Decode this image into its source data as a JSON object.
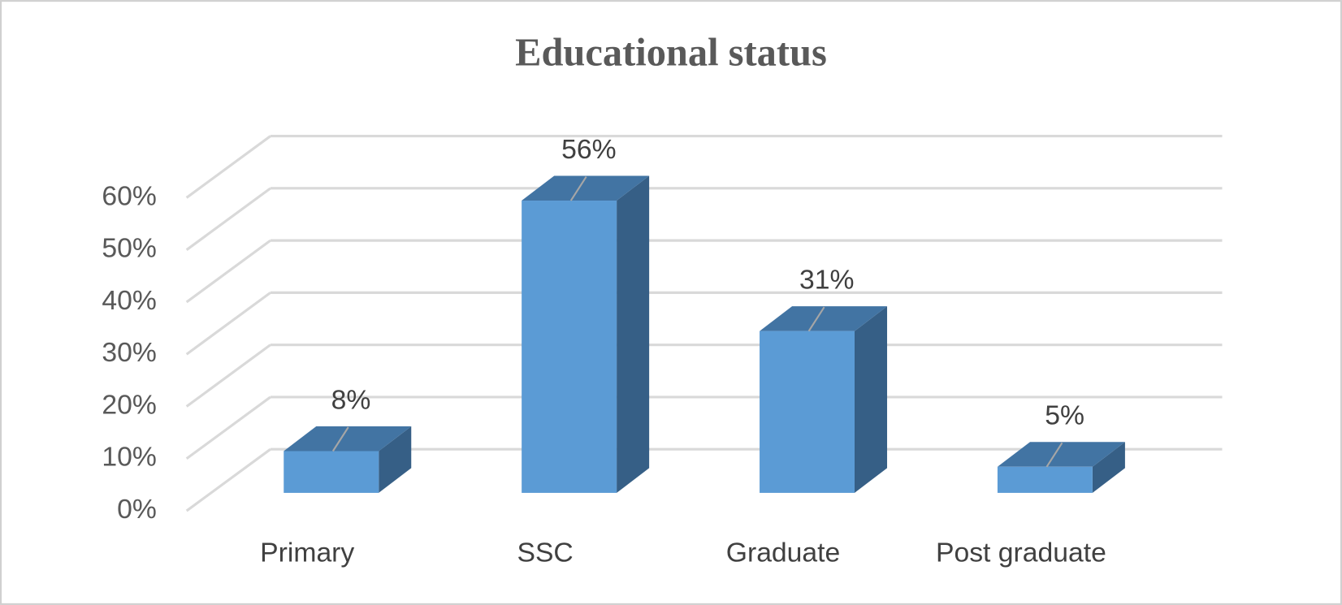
{
  "chart_data": {
    "type": "bar3d",
    "title": "Educational status",
    "categories": [
      "Primary",
      "SSC",
      "Graduate",
      "Post graduate"
    ],
    "values": [
      8,
      56,
      31,
      5
    ],
    "value_labels": [
      "8%",
      "56%",
      "31%",
      "5%"
    ],
    "color": "#5b9bd5",
    "ylim": [
      0,
      60
    ],
    "yticks": [
      {
        "value": 0,
        "label": "0%"
      },
      {
        "value": 10,
        "label": "10%"
      },
      {
        "value": 20,
        "label": "20%"
      },
      {
        "value": 30,
        "label": "30%"
      },
      {
        "value": 40,
        "label": "40%"
      },
      {
        "value": 50,
        "label": "50%"
      },
      {
        "value": 60,
        "label": "60%"
      }
    ],
    "grid": true
  }
}
